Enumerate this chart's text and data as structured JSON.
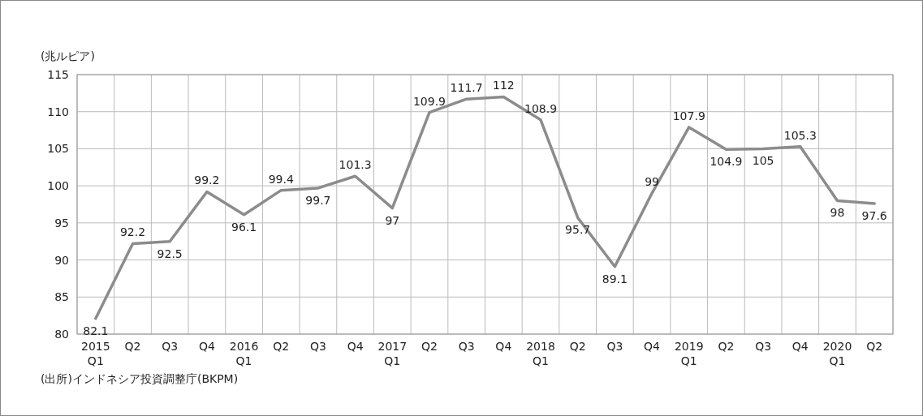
{
  "chart_data": {
    "type": "line",
    "ylabel": "(兆ルピア)",
    "categories": [
      "2015\nQ1",
      "Q2",
      "Q3",
      "Q4",
      "2016\nQ1",
      "Q2",
      "Q3",
      "Q4",
      "2017\nQ1",
      "Q2",
      "Q3",
      "Q4",
      "2018\nQ1",
      "Q2",
      "Q3",
      "Q4",
      "2019\nQ1",
      "Q2",
      "Q3",
      "Q4",
      "2020\nQ1",
      "Q2"
    ],
    "series": [
      {
        "color": "#8c8c8c",
        "values": [
          82.1,
          92.2,
          92.5,
          99.2,
          96.1,
          99.4,
          99.7,
          101.3,
          97,
          109.9,
          111.7,
          112,
          108.9,
          95.7,
          89.1,
          99,
          107.9,
          104.9,
          105,
          105.3,
          98,
          97.6
        ]
      }
    ],
    "ylim": [
      80,
      115
    ],
    "yticks": [
      80,
      85,
      90,
      95,
      100,
      105,
      110,
      115
    ],
    "grid": true,
    "data_labels": true,
    "marker": "none",
    "line_style": "solid",
    "annotations": [
      "(出所)インドネシア投資調整庁(BKPM)"
    ]
  }
}
